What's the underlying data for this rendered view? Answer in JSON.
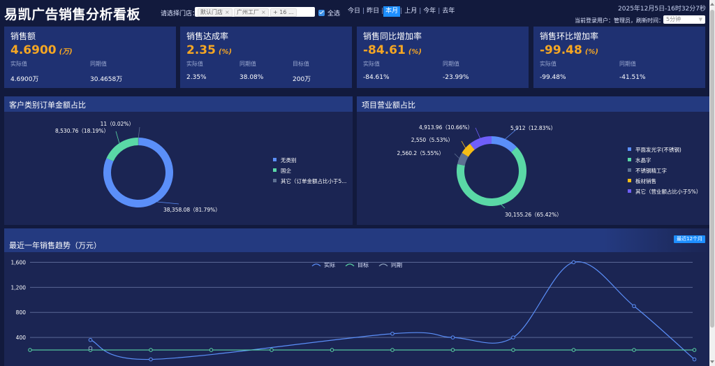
{
  "header": {
    "title": "易凯广告销售分析看板",
    "filter_label": "请选择门店：",
    "store_chips": [
      {
        "label": "默认门店"
      },
      {
        "label": "广州工厂"
      },
      {
        "label": "+ 16 ..."
      }
    ],
    "select_all": "全选",
    "period_tabs": [
      "今日",
      "昨日",
      "本月",
      "上月",
      "今年",
      "去年"
    ],
    "active_tab": "本月",
    "datetime": "2025年12月5日-16时32分7秒",
    "login_info": "当前登录用户：管理员，刷新时间：",
    "refresh_value": "5分钟"
  },
  "kpis": [
    {
      "title": "销售额",
      "value": "4.6900",
      "unit": "(万)",
      "metrics": [
        {
          "label": "实际值",
          "value": "4.6900万"
        },
        {
          "label": "同期值",
          "value": "30.4658万"
        }
      ]
    },
    {
      "title": "销售达成率",
      "value": "2.35",
      "unit": "(%)",
      "metrics": [
        {
          "label": "实际值",
          "value": "2.35%"
        },
        {
          "label": "同期值",
          "value": "38.08%"
        },
        {
          "label": "目标值",
          "value": "200万"
        }
      ]
    },
    {
      "title": "销售同比增加率",
      "value": "-84.61",
      "unit": "(%)",
      "metrics": [
        {
          "label": "实际值",
          "value": "-84.61%"
        },
        {
          "label": "同期值",
          "value": "-23.99%"
        }
      ]
    },
    {
      "title": "销售环比增加率",
      "value": "-99.48",
      "unit": "(%)",
      "metrics": [
        {
          "label": "实际值",
          "value": "-99.48%"
        },
        {
          "label": "同期值",
          "value": "-41.51%"
        }
      ]
    }
  ],
  "customer_pie": {
    "title": "客户类别订单金额占比",
    "slices": [
      {
        "name": "无类别",
        "value": 38358.08,
        "label": "38,358.08（81.79%）",
        "color": "#5b8ff9"
      },
      {
        "name": "国企",
        "value": 8530.76,
        "label": "8,530.76（18.19%）",
        "color": "#5ad8a6"
      },
      {
        "name": "其它（订单金额占比小于5...",
        "value": 11,
        "label": "11（0.02%）",
        "color": "#5d7092"
      }
    ]
  },
  "project_pie": {
    "title": "项目营业额占比",
    "slices": [
      {
        "name": "平面发光字(不锈钢)",
        "value": 5912,
        "label": "5,912（12.83%）",
        "color": "#5b8ff9"
      },
      {
        "name": "水晶字",
        "value": 30155.26,
        "label": "30,155.26（65.42%）",
        "color": "#5ad8a6"
      },
      {
        "name": "不锈钢精工字",
        "value": 2560.2,
        "label": "2,560.2（5.55%）",
        "color": "#5d7092"
      },
      {
        "name": "板材销售",
        "value": 2550,
        "label": "2,550（5.53%）",
        "color": "#f6bd16"
      },
      {
        "name": "其它（营业额占比小于5%）",
        "value": 4913.96,
        "label": "4,913.96（10.66%）",
        "color": "#6f5ef9"
      }
    ]
  },
  "trend": {
    "title": "最近一年销售趋势（万元）",
    "button": "最近12个月"
  },
  "chart_data": {
    "type": "line",
    "title": "最近一年销售趋势（万元）",
    "ylim": [
      0,
      1800
    ],
    "yticks": [
      "400",
      "800",
      "1,200",
      "1,600"
    ],
    "grid": true,
    "legend_position": "top",
    "x": [
      1,
      2,
      3,
      4,
      5,
      6,
      7,
      8,
      9,
      10,
      11,
      12
    ],
    "series": [
      {
        "name": "实际",
        "color": "#5b8ff9",
        "values": [
          null,
          360,
          50,
          null,
          null,
          null,
          460,
          400,
          400,
          1600,
          900,
          50
        ]
      },
      {
        "name": "目标",
        "color": "#5ad8a6",
        "values": [
          200,
          200,
          200,
          200,
          200,
          200,
          200,
          200,
          200,
          200,
          200,
          200
        ]
      },
      {
        "name": "同期",
        "color": "#8fa3bf",
        "values": [
          null,
          230,
          null,
          null,
          null,
          null,
          null,
          null,
          null,
          null,
          null,
          null
        ]
      }
    ]
  }
}
